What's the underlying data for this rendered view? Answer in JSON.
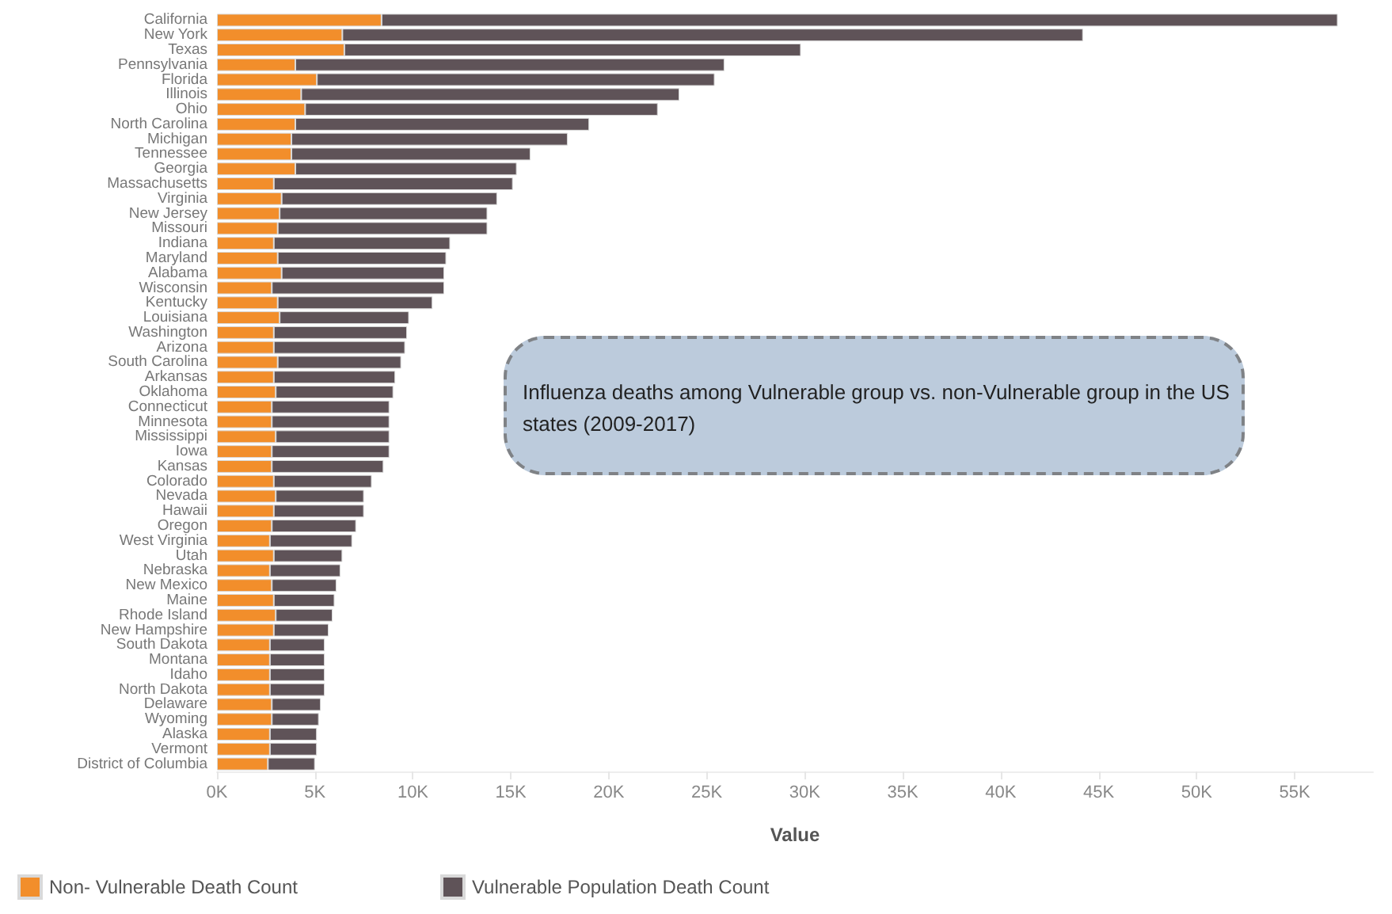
{
  "chart_data": {
    "type": "bar",
    "orientation": "horizontal",
    "stacked": true,
    "categories": [
      "California",
      "New York",
      "Texas",
      "Pennsylvania",
      "Florida",
      "Illinois",
      "Ohio",
      "North Carolina",
      "Michigan",
      "Tennessee",
      "Georgia",
      "Massachusetts",
      "Virginia",
      "New Jersey",
      "Missouri",
      "Indiana",
      "Maryland",
      "Alabama",
      "Wisconsin",
      "Kentucky",
      "Louisiana",
      "Washington",
      "Arizona",
      "South Carolina",
      "Arkansas",
      "Oklahoma",
      "Connecticut",
      "Minnesota",
      "Mississippi",
      "Iowa",
      "Kansas",
      "Colorado",
      "Nevada",
      "Hawaii",
      "Oregon",
      "West Virginia",
      "Utah",
      "Nebraska",
      "New Mexico",
      "Maine",
      "Rhode Island",
      "New Hampshire",
      "South Dakota",
      "Montana",
      "Idaho",
      "North Dakota",
      "Delaware",
      "Wyoming",
      "Alaska",
      "Vermont",
      "District of Columbia"
    ],
    "series": [
      {
        "name": "Non- Vulnerable Death Count",
        "color": "#f28e2b",
        "values": [
          8400,
          6400,
          6500,
          4000,
          5100,
          4300,
          4500,
          4000,
          3800,
          3800,
          4000,
          2900,
          3300,
          3200,
          3100,
          2900,
          3100,
          3300,
          2800,
          3100,
          3200,
          2900,
          2900,
          3100,
          2900,
          3000,
          2800,
          2800,
          3000,
          2800,
          2800,
          2900,
          3000,
          2900,
          2800,
          2700,
          2900,
          2700,
          2800,
          2900,
          3000,
          2900,
          2700,
          2700,
          2700,
          2700,
          2800,
          2800,
          2700,
          2700,
          2600
        ]
      },
      {
        "name": "Vulnerable Population Death Count",
        "color": "#5f5358",
        "values": [
          48800,
          37800,
          23300,
          21900,
          20300,
          19300,
          18000,
          15000,
          14100,
          12200,
          11300,
          12200,
          11000,
          10600,
          10700,
          9000,
          8600,
          8300,
          8800,
          7900,
          6600,
          6800,
          6700,
          6300,
          6200,
          6000,
          6000,
          6000,
          5800,
          6000,
          5700,
          5000,
          4500,
          4600,
          4300,
          4200,
          3500,
          3600,
          3300,
          3100,
          2900,
          2800,
          2800,
          2800,
          2800,
          2800,
          2500,
          2400,
          2400,
          2400,
          2400
        ]
      }
    ],
    "xlabel": "Value",
    "xlim": [
      0,
      59000
    ],
    "xticks": [
      {
        "value": 0,
        "label": "0K"
      },
      {
        "value": 5000,
        "label": "5K"
      },
      {
        "value": 10000,
        "label": "10K"
      },
      {
        "value": 15000,
        "label": "15K"
      },
      {
        "value": 20000,
        "label": "20K"
      },
      {
        "value": 25000,
        "label": "25K"
      },
      {
        "value": 30000,
        "label": "30K"
      },
      {
        "value": 35000,
        "label": "35K"
      },
      {
        "value": 40000,
        "label": "40K"
      },
      {
        "value": 45000,
        "label": "45K"
      },
      {
        "value": 50000,
        "label": "50K"
      },
      {
        "value": 55000,
        "label": "55K"
      }
    ],
    "legend": "bottom left",
    "grid": false,
    "annotations": [
      "Influenza deaths among Vulnerable group vs. non-Vulnerable group in the US states (2009-2017)"
    ]
  }
}
